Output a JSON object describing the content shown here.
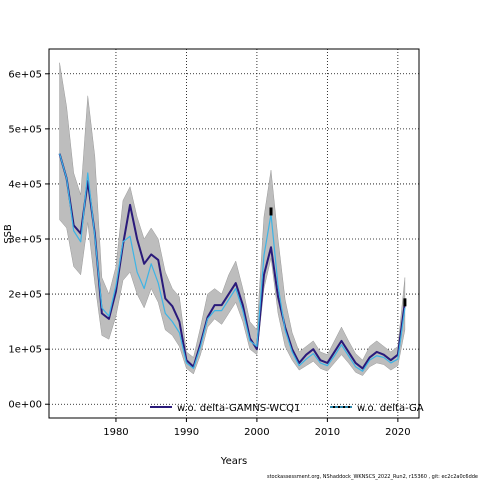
{
  "chart_data": {
    "type": "line",
    "xlabel": "Years",
    "ylabel": "SSB",
    "xlim": [
      1970.5,
      2023
    ],
    "ylim": [
      -25000,
      645000
    ],
    "x_ticks": [
      1980,
      1990,
      2000,
      2010,
      2020
    ],
    "x_tick_labels": [
      "1980",
      "1990",
      "2000",
      "2010",
      "2020"
    ],
    "y_ticks": [
      0,
      100000,
      200000,
      300000,
      400000,
      500000,
      600000
    ],
    "y_tick_labels": [
      "0e+00",
      "1e+05",
      "2e+05",
      "3e+05",
      "4e+05",
      "5e+05",
      "6e+05"
    ],
    "grid": true,
    "legend_placement": "bottom",
    "x": [
      1972,
      1973,
      1974,
      1975,
      1976,
      1977,
      1978,
      1979,
      1980,
      1981,
      1982,
      1983,
      1984,
      1985,
      1986,
      1987,
      1988,
      1989,
      1990,
      1991,
      1992,
      1993,
      1994,
      1995,
      1996,
      1997,
      1998,
      1999,
      2000,
      2001,
      2002,
      2003,
      2004,
      2005,
      2006,
      2007,
      2008,
      2009,
      2010,
      2011,
      2012,
      2013,
      2014,
      2015,
      2016,
      2017,
      2018,
      2019,
      2020,
      2021
    ],
    "series": [
      {
        "name": "w.o. delta-GAMNS-WCQ1",
        "color": "#2a1a7a",
        "values": [
          455000,
          410000,
          325000,
          310000,
          405000,
          310000,
          165000,
          155000,
          205000,
          290000,
          362000,
          300000,
          255000,
          272000,
          262000,
          192000,
          178000,
          150000,
          80000,
          68000,
          110000,
          158000,
          180000,
          180000,
          200000,
          220000,
          180000,
          120000,
          100000,
          235000,
          285000,
          195000,
          140000,
          100000,
          75000,
          90000,
          100000,
          80000,
          75000,
          95000,
          115000,
          95000,
          75000,
          65000,
          85000,
          95000,
          90000,
          80000,
          90000,
          185000
        ]
      },
      {
        "name": "w.o. delta-GA",
        "color": "#3cb4e6",
        "values": [
          455000,
          410000,
          315000,
          295000,
          420000,
          305000,
          175000,
          160000,
          215000,
          295000,
          305000,
          240000,
          210000,
          255000,
          220000,
          165000,
          150000,
          130000,
          75000,
          65000,
          105000,
          155000,
          170000,
          170000,
          190000,
          210000,
          170000,
          115000,
          105000,
          270000,
          345000,
          215000,
          135000,
          95000,
          70000,
          82000,
          92000,
          75000,
          70000,
          88000,
          108000,
          88000,
          68000,
          60000,
          80000,
          88000,
          85000,
          75000,
          82000,
          175000
        ]
      },
      {
        "name": "",
        "color": "#000000",
        "values": [
          null,
          null,
          null,
          null,
          null,
          null,
          null,
          null,
          null,
          null,
          null,
          null,
          null,
          null,
          null,
          null,
          null,
          null,
          null,
          null,
          null,
          null,
          null,
          null,
          null,
          null,
          null,
          null,
          null,
          null,
          350000,
          null,
          null,
          null,
          null,
          null,
          null,
          null,
          null,
          null,
          null,
          null,
          null,
          null,
          null,
          null,
          null,
          null,
          null,
          185000
        ]
      }
    ],
    "band_upper": [
      620000,
      540000,
      420000,
      380000,
      560000,
      450000,
      230000,
      200000,
      250000,
      370000,
      395000,
      340000,
      300000,
      320000,
      300000,
      240000,
      210000,
      195000,
      95000,
      85000,
      140000,
      200000,
      210000,
      200000,
      235000,
      260000,
      210000,
      150000,
      135000,
      340000,
      425000,
      300000,
      190000,
      130000,
      95000,
      105000,
      115000,
      95000,
      90000,
      115000,
      140000,
      115000,
      92000,
      80000,
      105000,
      115000,
      105000,
      95000,
      105000,
      230000
    ],
    "band_lower": [
      335000,
      320000,
      250000,
      235000,
      330000,
      220000,
      125000,
      118000,
      160000,
      225000,
      240000,
      200000,
      175000,
      210000,
      185000,
      135000,
      125000,
      105000,
      65000,
      55000,
      90000,
      140000,
      155000,
      145000,
      165000,
      185000,
      150000,
      100000,
      90000,
      210000,
      265000,
      165000,
      105000,
      80000,
      62000,
      70000,
      78000,
      65000,
      60000,
      75000,
      90000,
      75000,
      58000,
      52000,
      68000,
      75000,
      72000,
      62000,
      70000,
      135000
    ]
  },
  "footer": {
    "text": "stockassessment.org, NShaddock_WKNSCS_2022_Run2, r15360 , git: ec2c2a0c6dde"
  }
}
